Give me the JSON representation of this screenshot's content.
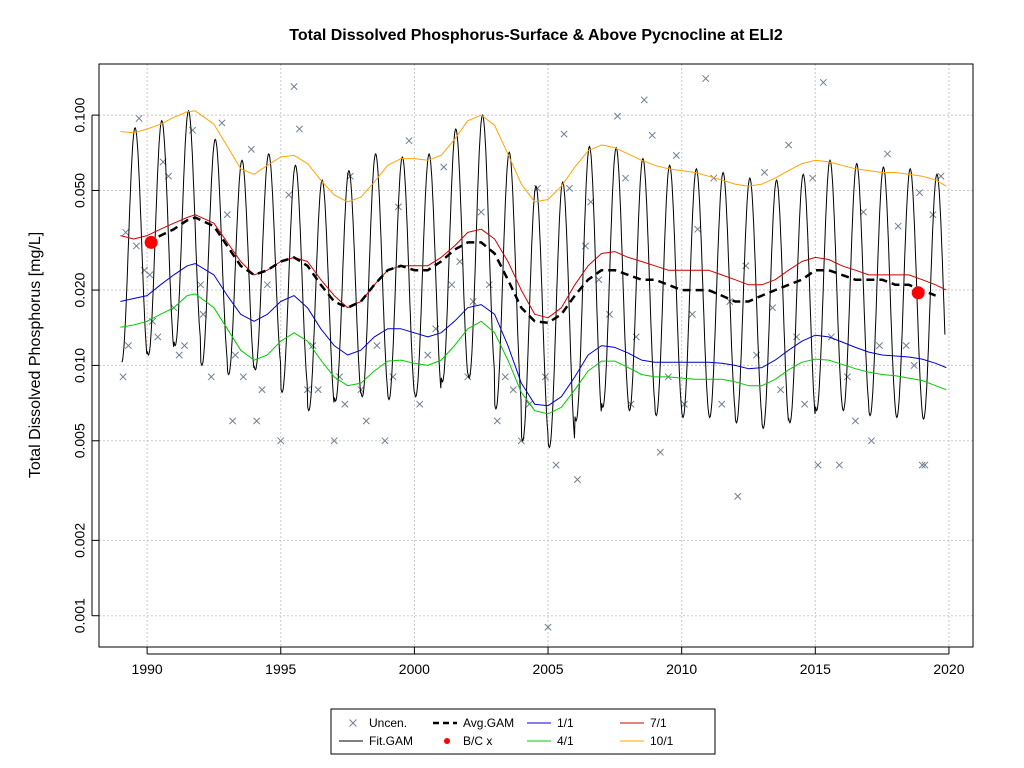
{
  "chart_data": {
    "type": "line",
    "title": "Total Dissolved Phosphorus-Surface & Above Pycnocline at ELI2",
    "xlabel": "",
    "ylabel": "Total Dissolved Phosphorus [mg/L]",
    "y_scale": "log",
    "xlim": [
      1988.2,
      2020.9
    ],
    "ylim": [
      0.00075,
      0.16
    ],
    "x_ticks": [
      "1990",
      "1995",
      "2000",
      "2005",
      "2010",
      "2015",
      "2020"
    ],
    "y_ticks": [
      "0.001",
      "0.002",
      "0.005",
      "0.010",
      "0.020",
      "0.050",
      "0.100"
    ],
    "grid": true,
    "legend_position": "bottom",
    "legend": [
      {
        "key": "uncen",
        "label": "Uncen.",
        "symbol": "x",
        "color": "#708090"
      },
      {
        "key": "avg",
        "label": "Avg.GAM",
        "symbol": "dashed-line",
        "color": "#000000"
      },
      {
        "key": "s11",
        "label": "1/1",
        "symbol": "line",
        "color": "#0000cc"
      },
      {
        "key": "s71",
        "label": "7/1",
        "symbol": "line",
        "color": "#cc0000"
      },
      {
        "key": "fit",
        "label": "Fit.GAM",
        "symbol": "line",
        "color": "#000000"
      },
      {
        "key": "bc",
        "label": "B/C x",
        "symbol": "dot",
        "color": "#ff0000"
      },
      {
        "key": "s41",
        "label": "4/1",
        "symbol": "line",
        "color": "#00cc00"
      },
      {
        "key": "s101",
        "label": "10/1",
        "symbol": "line",
        "color": "#ffa500"
      }
    ],
    "series": [
      {
        "name": "Avg.GAM",
        "color": "#000000",
        "x": [
          1990.0,
          1990.5,
          1991.0,
          1991.5,
          1991.8,
          1992.5,
          1993.0,
          1993.5,
          1994.0,
          1994.5,
          1995.0,
          1995.5,
          1996.0,
          1996.5,
          1997.0,
          1997.5,
          1998.0,
          1998.5,
          1999.0,
          1999.5,
          2000.0,
          2000.5,
          2001.0,
          2001.5,
          2002.0,
          2002.5,
          2003.0,
          2003.5,
          2004.0,
          2004.5,
          2005.0,
          2005.5,
          2006.0,
          2006.5,
          2007.0,
          2007.5,
          2008.0,
          2008.5,
          2009.0,
          2009.5,
          2010.0,
          2010.5,
          2011.0,
          2011.5,
          2012.0,
          2012.5,
          2013.0,
          2013.5,
          2014.0,
          2014.5,
          2015.0,
          2015.5,
          2016.0,
          2016.5,
          2017.0,
          2017.5,
          2018.0,
          2018.5,
          2019.0,
          2019.5
        ],
        "y": [
          0.031,
          0.033,
          0.035,
          0.038,
          0.039,
          0.036,
          0.03,
          0.025,
          0.023,
          0.024,
          0.026,
          0.027,
          0.025,
          0.021,
          0.018,
          0.017,
          0.018,
          0.021,
          0.024,
          0.025,
          0.024,
          0.024,
          0.026,
          0.029,
          0.031,
          0.031,
          0.028,
          0.022,
          0.017,
          0.015,
          0.0148,
          0.016,
          0.019,
          0.022,
          0.024,
          0.024,
          0.023,
          0.022,
          0.022,
          0.021,
          0.02,
          0.02,
          0.02,
          0.019,
          0.018,
          0.018,
          0.019,
          0.02,
          0.021,
          0.022,
          0.024,
          0.024,
          0.023,
          0.022,
          0.022,
          0.022,
          0.021,
          0.021,
          0.02,
          0.019
        ]
      },
      {
        "name": "7/1",
        "color": "#cc0000",
        "x": [
          1989.0,
          1989.5,
          1990.0,
          1990.5,
          1991.0,
          1991.5,
          1991.8,
          1992.5,
          1993.0,
          1993.5,
          1994.0,
          1994.5,
          1995.0,
          1995.5,
          1996.0,
          1996.5,
          1997.0,
          1997.5,
          1998.0,
          1998.5,
          1999.0,
          1999.5,
          2000.0,
          2000.5,
          2001.0,
          2001.5,
          2002.0,
          2002.5,
          2003.0,
          2003.5,
          2004.0,
          2004.5,
          2005.0,
          2005.5,
          2006.0,
          2006.5,
          2007.0,
          2007.5,
          2008.0,
          2008.5,
          2009.0,
          2009.5,
          2010.0,
          2010.5,
          2011.0,
          2011.5,
          2012.0,
          2012.5,
          2013.0,
          2013.5,
          2014.0,
          2014.5,
          2015.0,
          2015.5,
          2016.0,
          2016.5,
          2017.0,
          2017.5,
          2018.0,
          2018.5,
          2019.0,
          2019.5,
          2019.9
        ],
        "y": [
          0.033,
          0.032,
          0.033,
          0.035,
          0.037,
          0.039,
          0.04,
          0.037,
          0.031,
          0.026,
          0.023,
          0.024,
          0.026,
          0.027,
          0.026,
          0.022,
          0.019,
          0.017,
          0.018,
          0.021,
          0.024,
          0.025,
          0.025,
          0.025,
          0.027,
          0.03,
          0.034,
          0.035,
          0.032,
          0.026,
          0.02,
          0.016,
          0.0155,
          0.017,
          0.021,
          0.025,
          0.028,
          0.0285,
          0.027,
          0.026,
          0.025,
          0.024,
          0.024,
          0.024,
          0.024,
          0.023,
          0.022,
          0.021,
          0.021,
          0.022,
          0.024,
          0.026,
          0.027,
          0.0265,
          0.025,
          0.024,
          0.023,
          0.023,
          0.023,
          0.023,
          0.022,
          0.021,
          0.02
        ]
      },
      {
        "name": "1/1",
        "color": "#0000cc",
        "x": [
          1989.0,
          1989.5,
          1990.0,
          1990.5,
          1991.0,
          1991.5,
          1991.8,
          1992.5,
          1993.0,
          1993.5,
          1994.0,
          1994.5,
          1995.0,
          1995.5,
          1996.0,
          1996.5,
          1997.0,
          1997.5,
          1998.0,
          1998.5,
          1999.0,
          1999.5,
          2000.0,
          2000.5,
          2001.0,
          2001.5,
          2002.0,
          2002.5,
          2003.0,
          2003.5,
          2004.0,
          2004.5,
          2005.0,
          2005.5,
          2006.0,
          2006.5,
          2007.0,
          2007.5,
          2008.0,
          2008.5,
          2009.0,
          2009.5,
          2010.0,
          2010.5,
          2011.0,
          2011.5,
          2012.0,
          2012.5,
          2013.0,
          2013.5,
          2014.0,
          2014.5,
          2015.0,
          2015.5,
          2016.0,
          2016.5,
          2017.0,
          2017.5,
          2018.0,
          2018.5,
          2019.0,
          2019.5,
          2019.9
        ],
        "y": [
          0.018,
          0.0185,
          0.019,
          0.021,
          0.023,
          0.025,
          0.0255,
          0.023,
          0.019,
          0.016,
          0.015,
          0.016,
          0.018,
          0.019,
          0.017,
          0.014,
          0.012,
          0.011,
          0.0115,
          0.013,
          0.014,
          0.014,
          0.0135,
          0.013,
          0.0135,
          0.015,
          0.017,
          0.0175,
          0.016,
          0.012,
          0.0085,
          0.007,
          0.0069,
          0.0075,
          0.009,
          0.011,
          0.012,
          0.0118,
          0.0112,
          0.0105,
          0.0103,
          0.0103,
          0.0103,
          0.0103,
          0.0103,
          0.0102,
          0.01,
          0.0097,
          0.0098,
          0.0105,
          0.0115,
          0.0125,
          0.0132,
          0.013,
          0.0124,
          0.0118,
          0.0113,
          0.011,
          0.0109,
          0.0108,
          0.0106,
          0.0102,
          0.0098
        ]
      },
      {
        "name": "4/1",
        "color": "#00cc00",
        "x": [
          1989.0,
          1989.5,
          1990.0,
          1990.5,
          1991.0,
          1991.5,
          1991.8,
          1992.5,
          1993.0,
          1993.5,
          1994.0,
          1994.5,
          1995.0,
          1995.5,
          1996.0,
          1996.5,
          1997.0,
          1997.5,
          1998.0,
          1998.5,
          1999.0,
          1999.5,
          2000.0,
          2000.5,
          2001.0,
          2001.5,
          2002.0,
          2002.5,
          2003.0,
          2003.5,
          2004.0,
          2004.5,
          2005.0,
          2005.5,
          2006.0,
          2006.5,
          2007.0,
          2007.5,
          2008.0,
          2008.5,
          2009.0,
          2009.5,
          2010.0,
          2010.5,
          2011.0,
          2011.5,
          2012.0,
          2012.5,
          2013.0,
          2013.5,
          2014.0,
          2014.5,
          2015.0,
          2015.5,
          2016.0,
          2016.5,
          2017.0,
          2017.5,
          2018.0,
          2018.5,
          2019.0,
          2019.5,
          2019.9
        ],
        "y": [
          0.0142,
          0.0145,
          0.015,
          0.016,
          0.017,
          0.019,
          0.0193,
          0.017,
          0.014,
          0.0115,
          0.0105,
          0.011,
          0.0125,
          0.0135,
          0.0125,
          0.0105,
          0.009,
          0.0083,
          0.0085,
          0.0095,
          0.0104,
          0.0105,
          0.0102,
          0.01,
          0.0105,
          0.012,
          0.014,
          0.015,
          0.0135,
          0.0105,
          0.0078,
          0.0066,
          0.0064,
          0.0068,
          0.008,
          0.0095,
          0.0104,
          0.0104,
          0.0098,
          0.0092,
          0.009,
          0.009,
          0.0089,
          0.0088,
          0.0088,
          0.0088,
          0.0086,
          0.0083,
          0.0083,
          0.0088,
          0.0096,
          0.0103,
          0.0106,
          0.0105,
          0.0101,
          0.0097,
          0.0094,
          0.0092,
          0.0091,
          0.0089,
          0.0087,
          0.0083,
          0.008
        ]
      },
      {
        "name": "10/1",
        "color": "#ffa500",
        "x": [
          1989.0,
          1989.5,
          1990.0,
          1990.5,
          1991.0,
          1991.5,
          1991.8,
          1992.5,
          1993.0,
          1993.5,
          1994.0,
          1994.5,
          1995.0,
          1995.5,
          1996.0,
          1996.5,
          1997.0,
          1997.5,
          1998.0,
          1998.5,
          1999.0,
          1999.5,
          2000.0,
          2000.5,
          2001.0,
          2001.5,
          2002.0,
          2002.5,
          2003.0,
          2003.5,
          2004.0,
          2004.5,
          2005.0,
          2005.5,
          2006.0,
          2006.5,
          2007.0,
          2007.5,
          2008.0,
          2008.5,
          2009.0,
          2009.5,
          2010.0,
          2010.5,
          2011.0,
          2011.5,
          2012.0,
          2012.5,
          2013.0,
          2013.5,
          2014.0,
          2014.5,
          2015.0,
          2015.5,
          2016.0,
          2016.5,
          2017.0,
          2017.5,
          2018.0,
          2018.5,
          2019.0,
          2019.5,
          2019.9
        ],
        "y": [
          0.086,
          0.085,
          0.088,
          0.092,
          0.098,
          0.103,
          0.104,
          0.092,
          0.075,
          0.061,
          0.058,
          0.063,
          0.068,
          0.069,
          0.064,
          0.055,
          0.048,
          0.045,
          0.047,
          0.054,
          0.063,
          0.067,
          0.067,
          0.066,
          0.069,
          0.08,
          0.095,
          0.1,
          0.091,
          0.07,
          0.053,
          0.045,
          0.046,
          0.052,
          0.062,
          0.072,
          0.076,
          0.074,
          0.07,
          0.066,
          0.063,
          0.061,
          0.06,
          0.059,
          0.057,
          0.055,
          0.053,
          0.052,
          0.053,
          0.056,
          0.06,
          0.064,
          0.066,
          0.065,
          0.063,
          0.061,
          0.06,
          0.059,
          0.059,
          0.058,
          0.057,
          0.055,
          0.052
        ]
      },
      {
        "name": "Fit.GAM",
        "color": "#000000",
        "annual_peaks": [
          0.089,
          0.095,
          0.104,
          0.08,
          0.066,
          0.07,
          0.063,
          0.055,
          0.06,
          0.07,
          0.068,
          0.07,
          0.088,
          0.1,
          0.071,
          0.052,
          0.054,
          0.075,
          0.074,
          0.067,
          0.063,
          0.061,
          0.059,
          0.056,
          0.055,
          0.058,
          0.066,
          0.064,
          0.062,
          0.061,
          0.058
        ],
        "annual_troughs": [
          0.0103,
          0.011,
          0.012,
          0.01,
          0.0092,
          0.0096,
          0.0078,
          0.0066,
          0.0072,
          0.0075,
          0.0073,
          0.0075,
          0.0086,
          0.0089,
          0.0067,
          0.005,
          0.0047,
          0.006,
          0.0068,
          0.0066,
          0.0063,
          0.0062,
          0.0062,
          0.0059,
          0.0056,
          0.0059,
          0.0066,
          0.0066,
          0.0063,
          0.0062,
          0.0061
        ]
      },
      {
        "name": "B/C x",
        "color": "#ff0000",
        "x": [
          1990.15,
          2018.85
        ],
        "y": [
          0.031,
          0.0195
        ]
      }
    ],
    "points_uncen": {
      "x": [
        1989.1,
        1989.2,
        1989.3,
        1989.6,
        1989.7,
        1989.9,
        1990.1,
        1990.2,
        1990.4,
        1990.6,
        1990.8,
        1991.0,
        1991.2,
        1991.4,
        1991.7,
        1992.0,
        1992.1,
        1992.4,
        1992.8,
        1993.0,
        1993.2,
        1993.3,
        1993.6,
        1993.9,
        1994.1,
        1994.3,
        1994.5,
        1995.0,
        1995.3,
        1995.5,
        1995.7,
        1996.0,
        1996.2,
        1996.4,
        1997.0,
        1997.2,
        1997.4,
        1997.6,
        1998.0,
        1998.2,
        1998.6,
        1998.9,
        1999.2,
        1999.4,
        1999.8,
        2000.2,
        2000.5,
        2000.8,
        2001.1,
        2001.4,
        2001.7,
        2002.0,
        2002.2,
        2002.5,
        2002.8,
        2003.1,
        2003.4,
        2003.7,
        2004.0,
        2004.3,
        2004.6,
        2004.9,
        2005.0,
        2005.3,
        2005.6,
        2005.8,
        2006.1,
        2006.4,
        2006.6,
        2006.9,
        2007.3,
        2007.6,
        2007.9,
        2008.1,
        2008.3,
        2008.6,
        2008.9,
        2009.2,
        2009.5,
        2009.8,
        2010.1,
        2010.4,
        2010.6,
        2010.9,
        2011.2,
        2011.5,
        2011.8,
        2012.1,
        2012.4,
        2012.8,
        2013.1,
        2013.4,
        2013.7,
        2014.0,
        2014.3,
        2014.6,
        2014.9,
        2015.1,
        2015.3,
        2015.6,
        2015.9,
        2016.2,
        2016.5,
        2016.8,
        2017.1,
        2017.4,
        2017.7,
        2018.1,
        2018.4,
        2018.7,
        2018.9,
        2019.0,
        2019.1,
        2019.4,
        2019.7
      ],
      "y": [
        0.009,
        0.034,
        0.012,
        0.03,
        0.097,
        0.024,
        0.023,
        0.015,
        0.013,
        0.065,
        0.057,
        0.017,
        0.011,
        0.012,
        0.087,
        0.021,
        0.016,
        0.009,
        0.093,
        0.04,
        0.006,
        0.011,
        0.009,
        0.073,
        0.006,
        0.008,
        0.021,
        0.005,
        0.048,
        0.13,
        0.088,
        0.008,
        0.012,
        0.008,
        0.005,
        0.009,
        0.007,
        0.057,
        0.008,
        0.006,
        0.012,
        0.005,
        0.009,
        0.043,
        0.079,
        0.007,
        0.011,
        0.014,
        0.062,
        0.021,
        0.026,
        0.009,
        0.018,
        0.041,
        0.021,
        0.006,
        0.009,
        0.008,
        0.005,
        0.007,
        0.051,
        0.009,
        0.0009,
        0.004,
        0.084,
        0.051,
        0.0035,
        0.03,
        0.045,
        0.022,
        0.016,
        0.099,
        0.056,
        0.007,
        0.013,
        0.115,
        0.083,
        0.0045,
        0.009,
        0.069,
        0.007,
        0.016,
        0.035,
        0.14,
        0.056,
        0.007,
        0.018,
        0.003,
        0.025,
        0.011,
        0.059,
        0.017,
        0.008,
        0.076,
        0.013,
        0.007,
        0.056,
        0.004,
        0.135,
        0.013,
        0.004,
        0.009,
        0.006,
        0.041,
        0.005,
        0.012,
        0.07,
        0.036,
        0.012,
        0.01,
        0.049,
        0.004,
        0.004,
        0.04,
        0.057
      ]
    }
  }
}
